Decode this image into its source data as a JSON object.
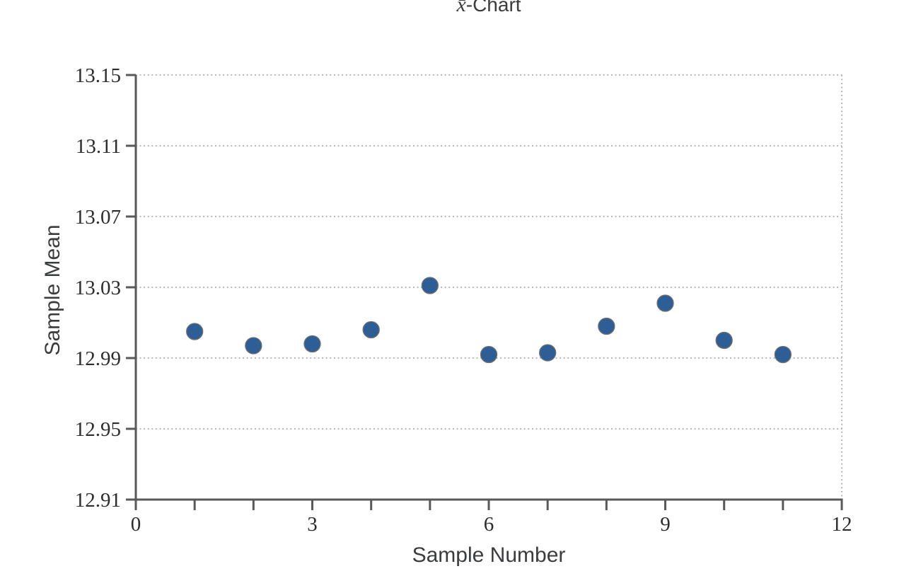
{
  "chart_data": {
    "type": "scatter",
    "title": "x̄-Chart",
    "title_prefix": "x̄",
    "title_suffix": "-Chart",
    "xlabel": "Sample Number",
    "ylabel": "Sample Mean",
    "xlim": [
      0,
      12
    ],
    "ylim": [
      12.91,
      13.15
    ],
    "x_major_ticks": [
      0,
      3,
      6,
      9,
      12
    ],
    "x_major_tick_labels": [
      "0",
      "3",
      "6",
      "9",
      "12"
    ],
    "x_minor_ticks": [
      0,
      1,
      2,
      3,
      4,
      5,
      6,
      7,
      8,
      9,
      10,
      11,
      12
    ],
    "y_ticks": [
      12.91,
      12.95,
      12.99,
      13.03,
      13.07,
      13.11,
      13.15
    ],
    "y_tick_labels": [
      "12.91",
      "12.95",
      "12.99",
      "13.03",
      "13.07",
      "13.11",
      "13.15"
    ],
    "grid": "dotted horizontal gridlines at every y tick; dotted vertical boundary at x = 12",
    "legend": "none",
    "points": [
      {
        "x": 1,
        "y": 13.005
      },
      {
        "x": 2,
        "y": 12.997
      },
      {
        "x": 3,
        "y": 12.998
      },
      {
        "x": 4,
        "y": 13.006
      },
      {
        "x": 5,
        "y": 13.031
      },
      {
        "x": 6,
        "y": 12.992
      },
      {
        "x": 7,
        "y": 12.993
      },
      {
        "x": 8,
        "y": 13.008
      },
      {
        "x": 9,
        "y": 13.021
      },
      {
        "x": 10,
        "y": 13.0
      },
      {
        "x": 11,
        "y": 12.992
      }
    ],
    "colors": {
      "point_fill": "#2d5f96",
      "point_stroke": "#6f6f6f",
      "axis": "#59595b",
      "grid": "#a8a8a8",
      "tick_label": "#2c2c2e",
      "axis_label": "#3b3c3e"
    }
  }
}
